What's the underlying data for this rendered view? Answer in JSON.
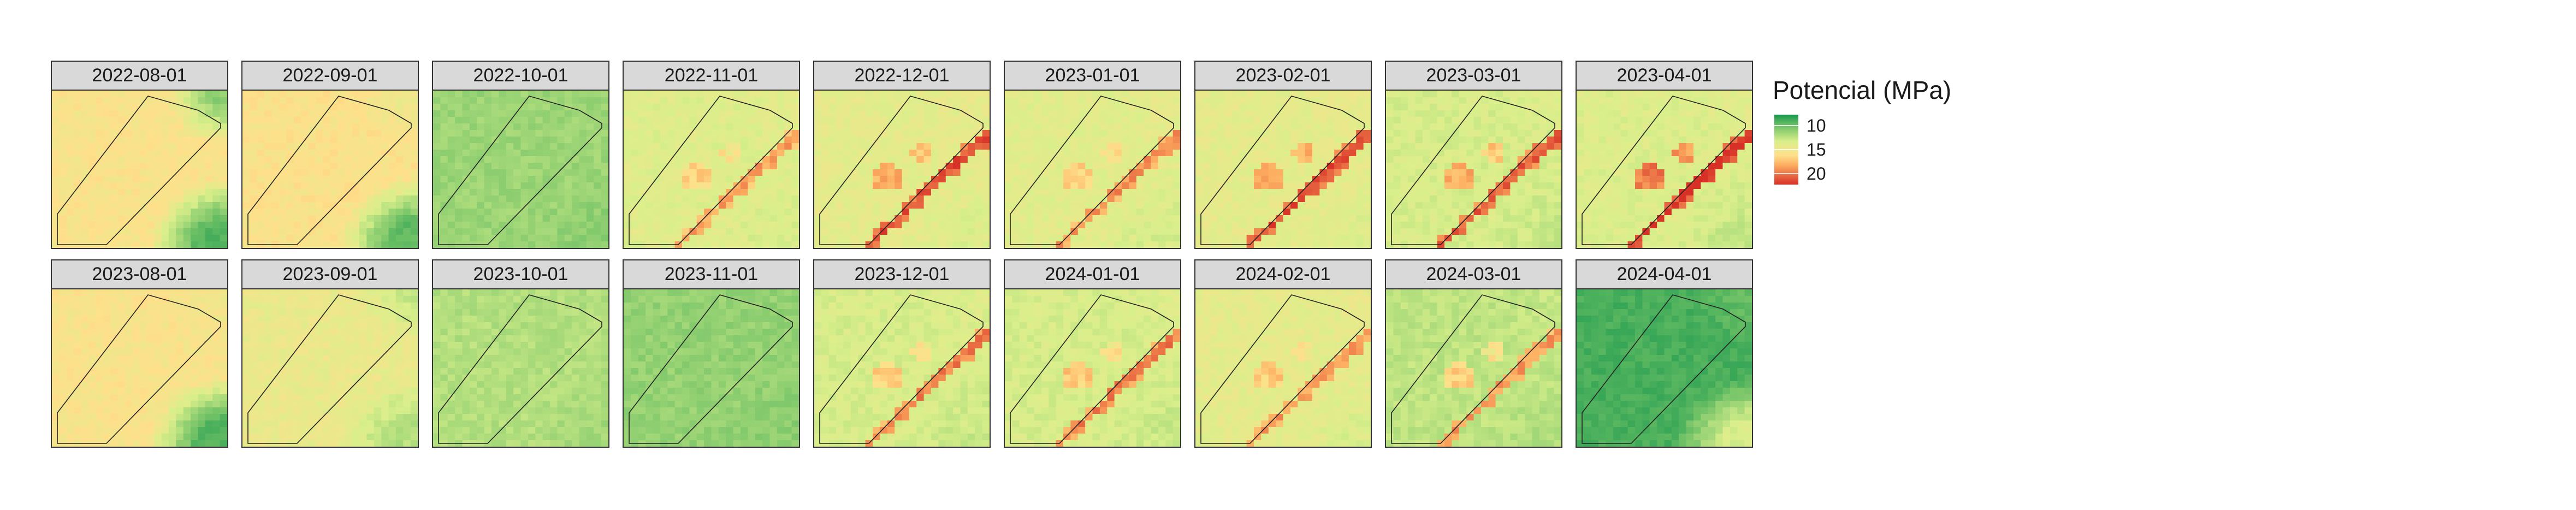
{
  "chart_data": {
    "type": "heatmap",
    "legend": {
      "title": "Potencial (MPa)",
      "breaks": [
        10,
        15,
        20
      ],
      "range": [
        8,
        21
      ],
      "colors": {
        "low": "#1a9850",
        "mid_low": "#66bd63",
        "mid": "#d9ef8b",
        "mid_high": "#fee08b",
        "high_mid": "#fdae61",
        "high": "#d73027"
      },
      "placement": "right"
    },
    "panels": [
      {
        "label": "2022-08-01",
        "base": 14.7,
        "corner_br": 9.5,
        "corner_tr": 11.0,
        "line": 0,
        "blobs": 0
      },
      {
        "label": "2022-09-01",
        "base": 14.8,
        "corner_br": 9.8,
        "corner_tr": 14.0,
        "line": 0,
        "blobs": 0
      },
      {
        "label": "2022-10-01",
        "base": 11.4,
        "corner_br": 11.0,
        "corner_tr": 11.4,
        "line": 0,
        "blobs": 0
      },
      {
        "label": "2022-11-01",
        "base": 13.3,
        "corner_br": 13.0,
        "corner_tr": 13.5,
        "line": 17.5,
        "blobs": 15.5
      },
      {
        "label": "2022-12-01",
        "base": 13.6,
        "corner_br": 13.2,
        "corner_tr": 13.8,
        "line": 20.0,
        "blobs": 17.0
      },
      {
        "label": "2023-01-01",
        "base": 13.4,
        "corner_br": 13.0,
        "corner_tr": 13.6,
        "line": 18.0,
        "blobs": 15.8
      },
      {
        "label": "2023-02-01",
        "base": 13.6,
        "corner_br": 13.2,
        "corner_tr": 13.8,
        "line": 20.0,
        "blobs": 17.5
      },
      {
        "label": "2023-03-01",
        "base": 13.0,
        "corner_br": 12.6,
        "corner_tr": 13.3,
        "line": 19.5,
        "blobs": 17.0
      },
      {
        "label": "2023-04-01",
        "base": 13.2,
        "corner_br": 12.5,
        "corner_tr": 13.5,
        "line": 21.0,
        "blobs": 18.5
      },
      {
        "label": "2023-08-01",
        "base": 14.7,
        "corner_br": 9.5,
        "corner_tr": 14.2,
        "line": 0,
        "blobs": 0
      },
      {
        "label": "2023-09-01",
        "base": 13.9,
        "corner_br": 12.0,
        "corner_tr": 12.5,
        "line": 0,
        "blobs": 0
      },
      {
        "label": "2023-10-01",
        "base": 12.0,
        "corner_br": 11.6,
        "corner_tr": 12.0,
        "line": 0,
        "blobs": 0
      },
      {
        "label": "2023-11-01",
        "base": 11.2,
        "corner_br": 11.0,
        "corner_tr": 11.2,
        "line": 0,
        "blobs": 0
      },
      {
        "label": "2023-12-01",
        "base": 13.0,
        "corner_br": 12.6,
        "corner_tr": 13.3,
        "line": 18.5,
        "blobs": 15.5
      },
      {
        "label": "2024-01-01",
        "base": 13.0,
        "corner_br": 12.6,
        "corner_tr": 13.3,
        "line": 18.5,
        "blobs": 15.8
      },
      {
        "label": "2024-02-01",
        "base": 13.6,
        "corner_br": 13.2,
        "corner_tr": 13.8,
        "line": 17.5,
        "blobs": 15.8
      },
      {
        "label": "2024-03-01",
        "base": 12.3,
        "corner_br": 12.0,
        "corner_tr": 12.5,
        "line": 17.5,
        "blobs": 15.5
      },
      {
        "label": "2024-04-01",
        "base": 9.2,
        "corner_br": 13.0,
        "corner_tr": 10.0,
        "line": 0,
        "blobs": 0
      }
    ]
  }
}
